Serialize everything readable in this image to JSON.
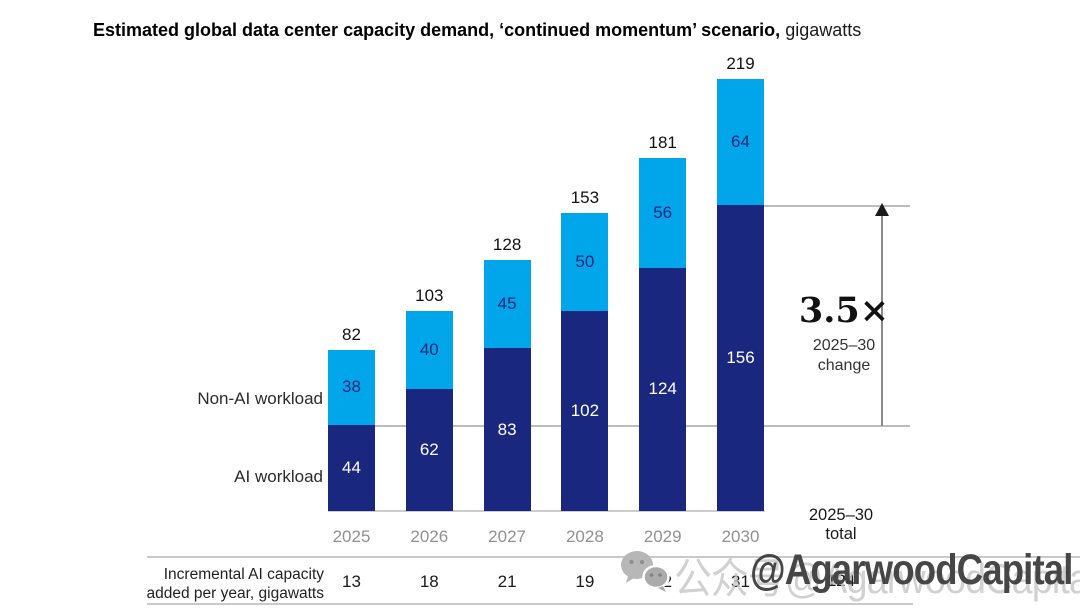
{
  "title": {
    "bold": "Estimated global data center capacity demand, ‘continued momentum’ scenario,",
    "regular": " gigawatts"
  },
  "legend": {
    "non_ai": "Non-AI workload",
    "ai": "AI workload"
  },
  "chart_data": {
    "type": "bar",
    "stacked": true,
    "title": "Estimated global data center capacity demand, ‘continued momentum’ scenario, gigawatts",
    "categories": [
      "2025",
      "2026",
      "2027",
      "2028",
      "2029",
      "2030"
    ],
    "series": [
      {
        "name": "AI workload",
        "values": [
          44,
          62,
          83,
          102,
          124,
          156
        ],
        "color": "#19277f",
        "label_color": "#ffffff"
      },
      {
        "name": "Non-AI workload",
        "values": [
          38,
          40,
          45,
          50,
          56,
          64
        ],
        "color": "#00a5ea",
        "label_color": "#19277f"
      }
    ],
    "totals": [
      82,
      103,
      128,
      153,
      181,
      219
    ],
    "ylim": [
      0,
      219
    ],
    "grid": false,
    "legend_position": "left-of-first-bar",
    "annotation": {
      "multiplier": "3.5×",
      "sub_line1": "2025–30",
      "sub_line2": "change",
      "reference_levels": {
        "start_ai": 44,
        "end_ai": 156
      }
    }
  },
  "table": {
    "row_label_line1": "Incremental AI capacity",
    "row_label_line2": "added per year, gigawatts",
    "values": [
      13,
      18,
      21,
      19,
      22,
      31
    ],
    "total_header_line1": "2025–30",
    "total_header_line2": "total",
    "total_value": 124
  },
  "watermark": {
    "icon": "wechat-icon",
    "light_text": "公众号@AgarwoodCapital",
    "bold_text": "@AgarwoodCapital"
  },
  "colors": {
    "ai_bar": "#19277f",
    "non_ai_bar": "#00a5ea",
    "axis_label_gray": "#919191",
    "gridline": "#bcbcbc",
    "text_dark": "#1a1a1a",
    "watermark_dark": "#3a3a3a",
    "watermark_light": "#c6c6c6"
  }
}
